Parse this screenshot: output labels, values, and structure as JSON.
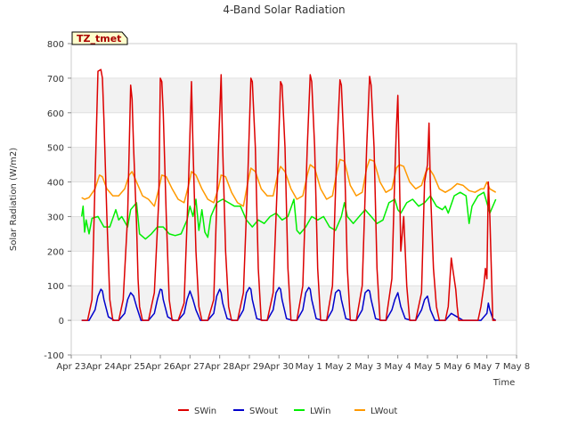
{
  "chart_data": {
    "type": "line",
    "title": "4-Band Solar Radiation",
    "xlabel": "Time",
    "ylabel": "Solar Radiation (W/m2)",
    "tag": "TZ_tmet",
    "ylim": [
      -100,
      800
    ],
    "yticks": [
      -100,
      0,
      100,
      200,
      300,
      400,
      500,
      600,
      700,
      800
    ],
    "xlim": [
      0,
      15
    ],
    "x_tick_labels": [
      "Apr 23",
      "Apr 24",
      "Apr 25",
      "Apr 26",
      "Apr 27",
      "Apr 28",
      "Apr 29",
      "Apr 30",
      "May 1",
      "May 2",
      "May 3",
      "May 4",
      "May 5",
      "May 6",
      "May 7",
      "May 8"
    ],
    "x_unit": "days since Apr 23",
    "grid": true,
    "legend_position": "bottom-center",
    "series": [
      {
        "name": "SWin",
        "color": "#dd0000",
        "x": [
          0.35,
          0.55,
          0.7,
          0.8,
          0.9,
          1.0,
          1.05,
          1.1,
          1.2,
          1.3,
          1.4,
          1.6,
          1.75,
          1.9,
          2.0,
          2.05,
          2.1,
          2.2,
          2.25,
          2.3,
          2.4,
          2.6,
          2.8,
          2.95,
          3.0,
          3.05,
          3.1,
          3.2,
          3.3,
          3.4,
          3.6,
          3.8,
          3.95,
          4.05,
          4.1,
          4.2,
          4.3,
          4.4,
          4.6,
          4.8,
          4.95,
          5.05,
          5.1,
          5.2,
          5.3,
          5.4,
          5.6,
          5.8,
          5.95,
          6.05,
          6.1,
          6.2,
          6.3,
          6.4,
          6.6,
          6.8,
          6.95,
          7.05,
          7.1,
          7.2,
          7.3,
          7.4,
          7.6,
          7.8,
          7.95,
          8.05,
          8.1,
          8.2,
          8.3,
          8.4,
          8.6,
          8.8,
          8.95,
          9.05,
          9.1,
          9.2,
          9.3,
          9.4,
          9.6,
          9.8,
          9.95,
          10.05,
          10.1,
          10.2,
          10.3,
          10.4,
          10.6,
          10.8,
          10.9,
          10.95,
          11.0,
          11.05,
          11.1,
          11.2,
          11.3,
          11.4,
          11.6,
          11.8,
          11.9,
          12.0,
          12.05,
          12.1,
          12.2,
          12.3,
          12.4,
          12.6,
          12.7,
          12.8,
          12.85,
          12.9,
          12.95,
          13.0,
          13.05,
          13.15,
          13.3,
          13.5,
          13.7,
          13.8,
          13.9,
          13.95,
          14.0,
          14.05,
          14.1,
          14.2,
          14.3
        ],
        "y": [
          0,
          0,
          60,
          400,
          720,
          725,
          700,
          580,
          300,
          60,
          0,
          0,
          60,
          300,
          680,
          640,
          500,
          280,
          120,
          40,
          0,
          0,
          80,
          350,
          700,
          690,
          600,
          300,
          60,
          0,
          0,
          50,
          400,
          690,
          500,
          200,
          40,
          0,
          0,
          60,
          480,
          710,
          500,
          200,
          40,
          0,
          0,
          80,
          420,
          700,
          690,
          500,
          150,
          0,
          0,
          80,
          420,
          690,
          680,
          500,
          150,
          0,
          0,
          100,
          500,
          710,
          690,
          500,
          150,
          0,
          0,
          100,
          500,
          695,
          680,
          480,
          150,
          0,
          0,
          100,
          500,
          705,
          680,
          500,
          150,
          0,
          0,
          120,
          420,
          550,
          650,
          450,
          200,
          300,
          100,
          0,
          0,
          80,
          400,
          450,
          570,
          380,
          150,
          40,
          0,
          0,
          40,
          180,
          150,
          120,
          90,
          40,
          0,
          0,
          0,
          0,
          0,
          40,
          100,
          150,
          120,
          400,
          300,
          0,
          0
        ],
        "width": 1.5
      },
      {
        "name": "SWout",
        "color": "#0000cc",
        "x": [
          0.35,
          0.6,
          0.8,
          0.9,
          1.0,
          1.05,
          1.1,
          1.25,
          1.45,
          1.6,
          1.8,
          1.9,
          2.0,
          2.1,
          2.2,
          2.35,
          2.6,
          2.8,
          2.9,
          3.0,
          3.05,
          3.1,
          3.25,
          3.45,
          3.6,
          3.8,
          3.9,
          4.0,
          4.1,
          4.2,
          4.35,
          4.6,
          4.8,
          4.9,
          5.0,
          5.05,
          5.1,
          5.25,
          5.45,
          5.6,
          5.8,
          5.9,
          6.0,
          6.05,
          6.1,
          6.25,
          6.45,
          6.6,
          6.8,
          6.9,
          7.0,
          7.05,
          7.1,
          7.25,
          7.45,
          7.6,
          7.8,
          7.9,
          8.0,
          8.05,
          8.1,
          8.25,
          8.45,
          8.6,
          8.8,
          8.9,
          9.0,
          9.05,
          9.1,
          9.25,
          9.45,
          9.6,
          9.8,
          9.9,
          10.0,
          10.05,
          10.1,
          10.25,
          10.45,
          10.6,
          10.8,
          10.9,
          11.0,
          11.1,
          11.25,
          11.45,
          11.6,
          11.8,
          11.9,
          12.0,
          12.1,
          12.25,
          12.45,
          12.6,
          12.8,
          13.0,
          13.2,
          13.4,
          13.6,
          13.8,
          13.9,
          14.0,
          14.05,
          14.1,
          14.2,
          14.3
        ],
        "y": [
          0,
          0,
          30,
          70,
          90,
          85,
          60,
          10,
          0,
          0,
          20,
          60,
          80,
          70,
          40,
          0,
          0,
          20,
          60,
          90,
          88,
          60,
          10,
          0,
          0,
          20,
          60,
          85,
          60,
          30,
          0,
          0,
          20,
          70,
          90,
          80,
          50,
          5,
          0,
          0,
          30,
          80,
          95,
          90,
          60,
          5,
          0,
          0,
          30,
          80,
          95,
          90,
          60,
          5,
          0,
          0,
          30,
          80,
          95,
          90,
          60,
          5,
          0,
          0,
          30,
          80,
          88,
          85,
          60,
          5,
          0,
          0,
          30,
          80,
          88,
          85,
          60,
          5,
          0,
          0,
          30,
          60,
          80,
          40,
          5,
          0,
          0,
          30,
          60,
          70,
          30,
          0,
          0,
          0,
          20,
          10,
          0,
          0,
          0,
          0,
          10,
          20,
          50,
          30,
          5,
          0
        ],
        "width": 1.5
      },
      {
        "name": "LWin",
        "color": "#00ee00",
        "x": [
          0.35,
          0.4,
          0.45,
          0.5,
          0.6,
          0.7,
          0.9,
          1.1,
          1.3,
          1.5,
          1.6,
          1.7,
          1.9,
          2.0,
          2.1,
          2.2,
          2.3,
          2.5,
          2.7,
          2.9,
          3.1,
          3.3,
          3.5,
          3.7,
          3.9,
          4.0,
          4.1,
          4.2,
          4.3,
          4.4,
          4.5,
          4.6,
          4.7,
          4.9,
          5.1,
          5.3,
          5.5,
          5.7,
          5.9,
          6.1,
          6.3,
          6.5,
          6.7,
          6.9,
          7.1,
          7.3,
          7.5,
          7.6,
          7.7,
          7.9,
          8.1,
          8.3,
          8.5,
          8.7,
          8.9,
          9.1,
          9.2,
          9.3,
          9.5,
          9.7,
          9.9,
          10.1,
          10.3,
          10.5,
          10.7,
          10.9,
          11.0,
          11.1,
          11.3,
          11.5,
          11.7,
          11.9,
          12.1,
          12.3,
          12.5,
          12.6,
          12.7,
          12.9,
          13.1,
          13.3,
          13.4,
          13.5,
          13.7,
          13.9,
          14.1,
          14.3
        ],
        "y": [
          300,
          330,
          255,
          290,
          250,
          295,
          300,
          270,
          270,
          320,
          290,
          300,
          270,
          320,
          330,
          340,
          250,
          235,
          250,
          270,
          270,
          250,
          245,
          250,
          290,
          330,
          300,
          350,
          260,
          320,
          255,
          240,
          300,
          340,
          350,
          340,
          330,
          330,
          290,
          270,
          290,
          280,
          300,
          310,
          290,
          300,
          350,
          260,
          250,
          270,
          300,
          290,
          300,
          270,
          260,
          300,
          340,
          300,
          280,
          300,
          320,
          300,
          280,
          290,
          340,
          350,
          320,
          310,
          340,
          350,
          330,
          340,
          360,
          330,
          320,
          330,
          310,
          360,
          370,
          360,
          280,
          330,
          360,
          370,
          310,
          350
        ],
        "width": 1.5
      },
      {
        "name": "LWout",
        "color": "#ff9900",
        "x": [
          0.35,
          0.45,
          0.6,
          0.8,
          0.95,
          1.05,
          1.2,
          1.4,
          1.6,
          1.8,
          1.95,
          2.05,
          2.2,
          2.4,
          2.6,
          2.8,
          2.95,
          3.05,
          3.2,
          3.4,
          3.6,
          3.8,
          3.95,
          4.05,
          4.2,
          4.4,
          4.6,
          4.8,
          4.95,
          5.05,
          5.2,
          5.4,
          5.6,
          5.8,
          5.95,
          6.05,
          6.2,
          6.4,
          6.6,
          6.8,
          6.95,
          7.05,
          7.2,
          7.4,
          7.6,
          7.8,
          7.95,
          8.05,
          8.2,
          8.4,
          8.6,
          8.8,
          8.95,
          9.05,
          9.2,
          9.4,
          9.6,
          9.8,
          9.95,
          10.05,
          10.2,
          10.4,
          10.6,
          10.8,
          10.95,
          11.05,
          11.2,
          11.4,
          11.6,
          11.8,
          11.95,
          12.05,
          12.2,
          12.4,
          12.6,
          12.8,
          13.0,
          13.2,
          13.4,
          13.6,
          13.8,
          13.9,
          14.0,
          14.1,
          14.3
        ],
        "y": [
          355,
          350,
          355,
          380,
          420,
          415,
          380,
          360,
          360,
          380,
          420,
          430,
          400,
          360,
          350,
          330,
          380,
          420,
          415,
          380,
          350,
          340,
          390,
          430,
          420,
          380,
          350,
          340,
          380,
          420,
          415,
          370,
          340,
          330,
          400,
          440,
          430,
          380,
          360,
          360,
          420,
          445,
          430,
          380,
          350,
          360,
          420,
          450,
          440,
          380,
          350,
          360,
          430,
          465,
          460,
          390,
          360,
          370,
          440,
          465,
          460,
          400,
          370,
          380,
          440,
          450,
          445,
          400,
          380,
          390,
          430,
          440,
          420,
          380,
          370,
          380,
          395,
          390,
          375,
          370,
          380,
          380,
          400,
          380,
          370
        ],
        "width": 1.5
      }
    ]
  }
}
